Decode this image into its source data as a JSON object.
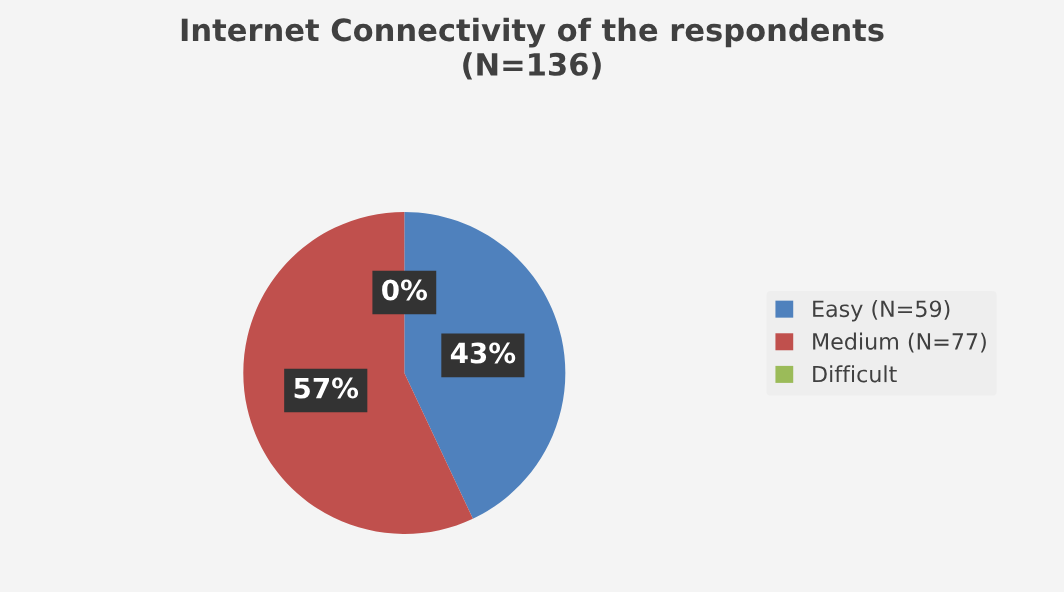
{
  "chart_data": {
    "type": "pie",
    "title": "Internet Connectivity of the respondents\n(N=136)",
    "categories": [
      "Easy (N=59)",
      "Medium (N=77)",
      "Difficult"
    ],
    "values": [
      43,
      57,
      0
    ],
    "value_labels": [
      "43%",
      "57%",
      "0%"
    ],
    "colors": [
      "#4f81bd",
      "#c0504d",
      "#9bbb59"
    ],
    "legend": "right"
  }
}
